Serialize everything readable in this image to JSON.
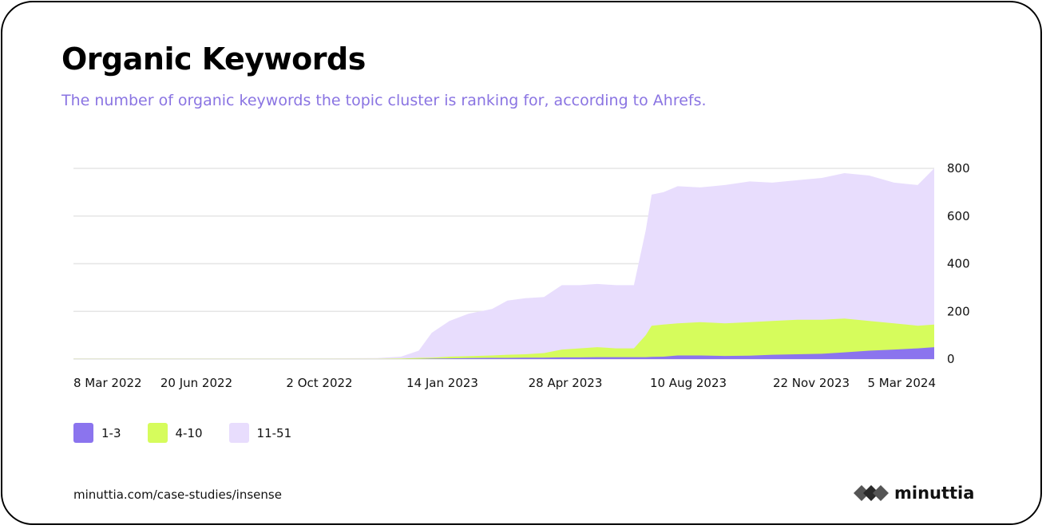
{
  "header": {
    "title": "Organic Keywords",
    "subtitle": "The number of organic keywords the topic cluster is ranking for, according to Ahrefs."
  },
  "footer": {
    "url": "minuttia.com/case-studies/insense",
    "brand": "minuttia"
  },
  "colors": {
    "series_1_3": "#8b74ee",
    "series_4_10": "#d6fc5c",
    "series_11_51": "#e8ddfd",
    "gridline": "#e6e6e6",
    "subtitle": "#8a74e2"
  },
  "icons": {
    "brand_logo": "minuttia-diamonds-logo-icon"
  },
  "chart_data": {
    "type": "area",
    "stacked": false,
    "x_tick_labels": [
      "8 Mar 2022",
      "20 Jun 2022",
      "2 Oct 2022",
      "14 Jan 2023",
      "28 Apr 2023",
      "10 Aug 2023",
      "22 Nov 2023",
      "5 Mar 2024"
    ],
    "xlim": [
      "2022-03-08",
      "2024-03-05"
    ],
    "y_ticks": [
      0,
      200,
      400,
      600,
      800
    ],
    "ylim": [
      0,
      800
    ],
    "y_axis_position": "right",
    "grid": "horizontal",
    "legend_position": "bottom-left",
    "x": [
      "2022-03-08",
      "2022-06-20",
      "2022-10-02",
      "2022-11-20",
      "2022-12-10",
      "2022-12-25",
      "2023-01-05",
      "2023-01-20",
      "2023-02-05",
      "2023-02-25",
      "2023-03-10",
      "2023-03-25",
      "2023-04-10",
      "2023-04-25",
      "2023-05-10",
      "2023-05-25",
      "2023-06-10",
      "2023-06-25",
      "2023-07-05",
      "2023-07-10",
      "2023-07-20",
      "2023-08-01",
      "2023-08-20",
      "2023-09-10",
      "2023-10-01",
      "2023-10-20",
      "2023-11-10",
      "2023-12-01",
      "2023-12-20",
      "2024-01-10",
      "2024-01-31",
      "2024-02-20",
      "2024-03-05"
    ],
    "series": [
      {
        "name": "11-51",
        "values": [
          3,
          3,
          3,
          4,
          10,
          35,
          110,
          160,
          190,
          210,
          245,
          255,
          260,
          310,
          310,
          315,
          310,
          310,
          540,
          690,
          700,
          725,
          720,
          730,
          745,
          740,
          750,
          760,
          780,
          770,
          740,
          730,
          800
        ]
      },
      {
        "name": "4-10",
        "values": [
          1,
          1,
          1,
          1,
          2,
          5,
          6,
          10,
          12,
          15,
          18,
          20,
          25,
          40,
          45,
          50,
          45,
          45,
          100,
          140,
          145,
          150,
          155,
          150,
          155,
          160,
          165,
          165,
          170,
          160,
          150,
          140,
          145
        ]
      },
      {
        "name": "1-3",
        "values": [
          0,
          0,
          0,
          0,
          0,
          1,
          2,
          3,
          4,
          5,
          5,
          6,
          6,
          7,
          7,
          8,
          8,
          8,
          8,
          9,
          10,
          15,
          15,
          13,
          14,
          18,
          20,
          22,
          28,
          35,
          40,
          45,
          50
        ]
      }
    ]
  }
}
